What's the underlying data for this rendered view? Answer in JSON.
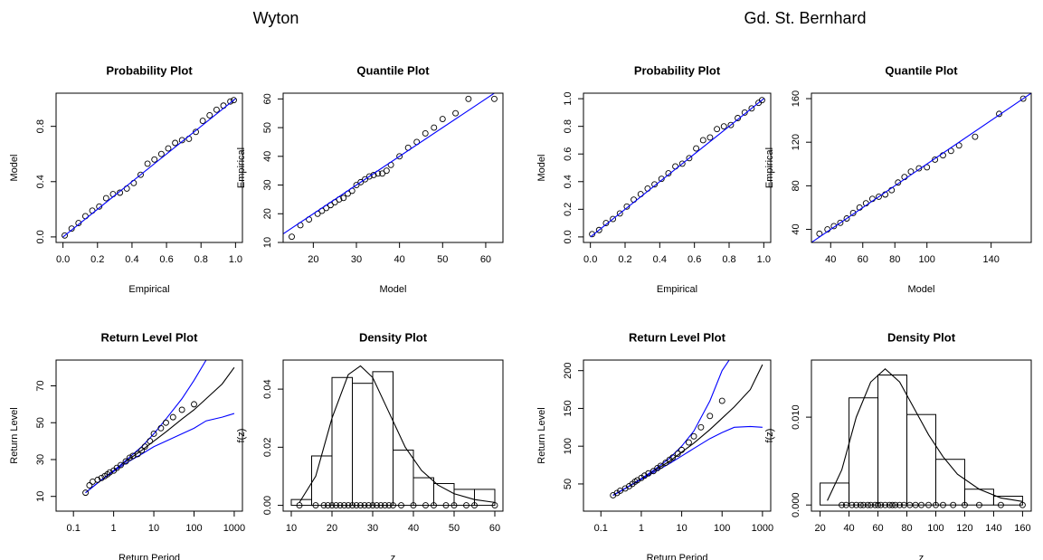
{
  "groups": [
    {
      "title": "Wyton"
    },
    {
      "title": "Gd. St. Bernhard"
    }
  ],
  "chart_data": [
    {
      "type": "scatter",
      "title": "Probability Plot",
      "xlabel": "Empirical",
      "ylabel": "Model",
      "xlim": [
        -0.04,
        1.04
      ],
      "ylim": [
        -0.04,
        1.04
      ],
      "xticks": [
        {
          "value": 0,
          "label": "0.0"
        },
        0.2,
        0.4,
        0.6,
        0.8,
        {
          "value": 1,
          "label": "1.0"
        }
      ],
      "yticks": [
        {
          "value": 0,
          "label": "0.0"
        },
        0.4,
        0.8
      ],
      "series": [
        {
          "type": "scatter",
          "color": "#000000",
          "x": [
            0.01,
            0.05,
            0.09,
            0.13,
            0.17,
            0.21,
            0.25,
            0.29,
            0.33,
            0.37,
            0.41,
            0.45,
            0.49,
            0.53,
            0.57,
            0.61,
            0.65,
            0.69,
            0.73,
            0.77,
            0.81,
            0.85,
            0.89,
            0.93,
            0.97,
            0.99
          ],
          "values": [
            0.01,
            0.06,
            0.1,
            0.15,
            0.19,
            0.22,
            0.28,
            0.31,
            0.32,
            0.35,
            0.39,
            0.45,
            0.53,
            0.56,
            0.6,
            0.64,
            0.68,
            0.7,
            0.71,
            0.76,
            0.84,
            0.88,
            0.92,
            0.95,
            0.98,
            0.99
          ]
        },
        {
          "type": "line",
          "color": "#0000ff",
          "x": [
            0,
            1
          ],
          "values": [
            0,
            1
          ]
        }
      ]
    },
    {
      "type": "scatter",
      "title": "Quantile Plot",
      "xlabel": "Model",
      "ylabel": "Empirical",
      "xlim": [
        13,
        64
      ],
      "ylim": [
        10,
        62
      ],
      "xticks": [
        20,
        30,
        40,
        50,
        60
      ],
      "yticks": [
        10,
        20,
        30,
        40,
        50,
        60
      ],
      "series": [
        {
          "type": "scatter",
          "color": "#000000",
          "x": [
            15,
            17,
            19,
            21,
            22,
            23,
            24,
            25,
            26,
            27,
            28,
            29,
            30,
            31,
            32,
            33,
            34,
            35,
            36,
            37,
            38,
            40,
            42,
            44,
            46,
            48,
            50,
            53,
            56,
            62
          ],
          "values": [
            12,
            16,
            18,
            20,
            21,
            22,
            23,
            24,
            25,
            25.5,
            27,
            28,
            30,
            31,
            32,
            33,
            33.5,
            34,
            34,
            35,
            37,
            40,
            43,
            45,
            48,
            50,
            53,
            55,
            60,
            60
          ]
        },
        {
          "type": "line",
          "color": "#0000ff",
          "x": [
            13,
            64
          ],
          "values": [
            13,
            64
          ]
        }
      ]
    },
    {
      "type": "scatter",
      "title": "Return Level Plot",
      "xlabel": "Return Period",
      "ylabel": "Return Level",
      "xlog": true,
      "xlim": [
        0.037,
        1600
      ],
      "ylim": [
        2,
        84
      ],
      "xticks": [
        0.1,
        1,
        10,
        100,
        1000
      ],
      "yticks": [
        10,
        30,
        50,
        70
      ],
      "series": [
        {
          "type": "line",
          "color": "#000000",
          "x": [
            0.2,
            0.5,
            1,
            2,
            5,
            10,
            20,
            50,
            100,
            200,
            500,
            1000
          ],
          "values": [
            12,
            19,
            24,
            29,
            35,
            40,
            45,
            52,
            57,
            63,
            71,
            80
          ]
        },
        {
          "type": "line",
          "color": "#0000ff",
          "x": [
            0.2,
            0.5,
            1,
            2,
            5,
            10,
            20,
            50,
            100,
            200
          ],
          "values": [
            12,
            19,
            24,
            29.5,
            37,
            44,
            52,
            63,
            73,
            84
          ]
        },
        {
          "type": "line",
          "color": "#0000ff",
          "x": [
            0.2,
            0.5,
            1,
            2,
            5,
            10,
            20,
            50,
            100,
            200,
            500,
            1000
          ],
          "values": [
            12,
            19,
            23.5,
            28,
            33,
            37,
            40,
            44,
            47,
            51,
            53,
            55
          ]
        },
        {
          "type": "scatter",
          "color": "#000000",
          "x": [
            0.2,
            0.25,
            0.3,
            0.4,
            0.5,
            0.6,
            0.7,
            0.8,
            1,
            1.2,
            1.5,
            2,
            2.5,
            3,
            4,
            5,
            6,
            8,
            10,
            15,
            20,
            30,
            50,
            100
          ],
          "values": [
            12,
            16,
            18,
            19,
            20,
            21,
            22,
            23,
            24,
            25.5,
            27,
            29,
            31,
            32,
            33,
            35,
            37,
            40,
            44,
            47,
            50,
            53,
            57,
            60
          ]
        }
      ]
    },
    {
      "type": "histogram",
      "title": "Density Plot",
      "xlabel": "z",
      "ylabel": "f(z)",
      "xlim": [
        8,
        62
      ],
      "ylim": [
        -0.002,
        0.05
      ],
      "xticks": [
        10,
        20,
        30,
        40,
        50,
        60
      ],
      "yticks": [
        {
          "value": 0,
          "label": "0.00"
        },
        0.02,
        0.04
      ],
      "bins": [
        10,
        15,
        20,
        25,
        30,
        35,
        40,
        45,
        50,
        55,
        60
      ],
      "counts": [
        0.002,
        0.017,
        0.044,
        0.042,
        0.046,
        0.019,
        0.0095,
        0.0075,
        0.0055,
        0.0055
      ],
      "series": [
        {
          "type": "line",
          "color": "#000000",
          "x": [
            12,
            16,
            20,
            24,
            27,
            30,
            34,
            38,
            42,
            46,
            50,
            55,
            60
          ],
          "values": [
            0.001,
            0.01,
            0.03,
            0.045,
            0.048,
            0.044,
            0.032,
            0.02,
            0.012,
            0.007,
            0.004,
            0.002,
            0.001
          ]
        },
        {
          "type": "scatter",
          "color": "#000000",
          "x": [
            12,
            16,
            18,
            19,
            20,
            21,
            22,
            23,
            24,
            25,
            26,
            27,
            28,
            29,
            30,
            31,
            32,
            33,
            34,
            35,
            37,
            40,
            43,
            45,
            48,
            50,
            53,
            55,
            60
          ],
          "values": [
            0,
            0,
            0,
            0,
            0,
            0,
            0,
            0,
            0,
            0,
            0,
            0,
            0,
            0,
            0,
            0,
            0,
            0,
            0,
            0,
            0,
            0,
            0,
            0,
            0,
            0,
            0,
            0,
            0
          ]
        }
      ]
    },
    {
      "type": "scatter",
      "title": "Probability Plot",
      "xlabel": "Empirical",
      "ylabel": "Model",
      "xlim": [
        -0.04,
        1.04
      ],
      "ylim": [
        -0.04,
        1.04
      ],
      "xticks": [
        {
          "value": 0,
          "label": "0.0"
        },
        0.2,
        0.4,
        0.6,
        0.8,
        {
          "value": 1,
          "label": "1.0"
        }
      ],
      "yticks": [
        {
          "value": 0,
          "label": "0.0"
        },
        0.2,
        0.4,
        0.6,
        0.8,
        {
          "value": 1,
          "label": "1.0"
        }
      ],
      "series": [
        {
          "type": "scatter",
          "color": "#000000",
          "x": [
            0.01,
            0.05,
            0.09,
            0.13,
            0.17,
            0.21,
            0.25,
            0.29,
            0.33,
            0.37,
            0.41,
            0.45,
            0.49,
            0.53,
            0.57,
            0.61,
            0.65,
            0.69,
            0.73,
            0.77,
            0.81,
            0.85,
            0.89,
            0.93,
            0.97,
            0.99
          ],
          "values": [
            0.02,
            0.05,
            0.1,
            0.13,
            0.17,
            0.22,
            0.27,
            0.31,
            0.35,
            0.38,
            0.42,
            0.46,
            0.51,
            0.53,
            0.57,
            0.64,
            0.7,
            0.72,
            0.78,
            0.8,
            0.81,
            0.86,
            0.9,
            0.93,
            0.97,
            0.99
          ]
        },
        {
          "type": "line",
          "color": "#0000ff",
          "x": [
            0,
            1
          ],
          "values": [
            0,
            1
          ]
        }
      ]
    },
    {
      "type": "scatter",
      "title": "Quantile Plot",
      "xlabel": "Model",
      "ylabel": "Empirical",
      "xlim": [
        28,
        165
      ],
      "ylim": [
        28,
        165
      ],
      "xticks": [
        40,
        60,
        80,
        100,
        140
      ],
      "yticks": [
        40,
        80,
        120,
        160
      ],
      "series": [
        {
          "type": "scatter",
          "color": "#000000",
          "x": [
            33,
            38,
            42,
            46,
            50,
            54,
            58,
            62,
            66,
            70,
            74,
            78,
            82,
            86,
            90,
            95,
            100,
            105,
            110,
            115,
            120,
            130,
            145,
            160
          ],
          "values": [
            36,
            40,
            43,
            46,
            50,
            55,
            60,
            64,
            68,
            70,
            72,
            76,
            83,
            88,
            93,
            96,
            97,
            104,
            108,
            112,
            117,
            125,
            146,
            160
          ]
        },
        {
          "type": "line",
          "color": "#0000ff",
          "x": [
            28,
            165
          ],
          "values": [
            28,
            165
          ]
        }
      ]
    },
    {
      "type": "scatter",
      "title": "Return Level Plot",
      "xlabel": "Return Period",
      "ylabel": "Return Level",
      "xlog": true,
      "xlim": [
        0.037,
        1600
      ],
      "ylim": [
        14,
        214
      ],
      "xticks": [
        0.1,
        1,
        10,
        100,
        1000
      ],
      "yticks": [
        50,
        100,
        150,
        200
      ],
      "series": [
        {
          "type": "line",
          "color": "#000000",
          "x": [
            0.2,
            0.5,
            1,
            2,
            5,
            10,
            20,
            50,
            100,
            200,
            500,
            1000
          ],
          "values": [
            35,
            47,
            57,
            67,
            80,
            92,
            104,
            122,
            137,
            152,
            175,
            208
          ]
        },
        {
          "type": "line",
          "color": "#0000ff",
          "x": [
            0.2,
            0.5,
            1,
            2,
            5,
            10,
            20,
            50,
            100,
            150
          ],
          "values": [
            35,
            47,
            57,
            68,
            84,
            100,
            120,
            160,
            200,
            214
          ]
        },
        {
          "type": "line",
          "color": "#0000ff",
          "x": [
            0.2,
            0.5,
            1,
            2,
            5,
            10,
            20,
            50,
            100,
            200,
            500,
            1000
          ],
          "values": [
            35,
            47,
            56,
            65,
            77,
            87,
            97,
            110,
            118,
            125,
            126,
            125
          ]
        },
        {
          "type": "scatter",
          "color": "#000000",
          "x": [
            0.2,
            0.25,
            0.3,
            0.4,
            0.5,
            0.6,
            0.7,
            0.8,
            1,
            1.2,
            1.5,
            2,
            2.5,
            3,
            4,
            5,
            6,
            8,
            10,
            15,
            20,
            30,
            50,
            100
          ],
          "values": [
            35,
            38,
            41,
            44,
            47,
            50,
            53,
            55,
            58,
            61,
            64,
            67,
            71,
            74,
            78,
            82,
            85,
            90,
            95,
            105,
            113,
            125,
            140,
            160
          ]
        }
      ]
    },
    {
      "type": "histogram",
      "title": "Density Plot",
      "xlabel": "z",
      "ylabel": "f(z)",
      "xlim": [
        14,
        166
      ],
      "ylim": [
        -0.0007,
        0.0165
      ],
      "xticks": [
        20,
        40,
        60,
        80,
        100,
        120,
        140,
        160
      ],
      "yticks": [
        {
          "value": 0,
          "label": "0.000"
        },
        {
          "value": 0.01,
          "label": "0.010"
        }
      ],
      "bins": [
        20,
        40,
        60,
        80,
        100,
        120,
        140,
        160
      ],
      "counts": [
        0.0025,
        0.0122,
        0.0148,
        0.0103,
        0.0052,
        0.0018,
        0.001
      ],
      "series": [
        {
          "type": "line",
          "color": "#000000",
          "x": [
            25,
            35,
            45,
            55,
            65,
            75,
            85,
            95,
            105,
            115,
            130,
            145,
            160
          ],
          "values": [
            0.0005,
            0.004,
            0.01,
            0.014,
            0.0155,
            0.014,
            0.011,
            0.008,
            0.0055,
            0.0035,
            0.0018,
            0.0008,
            0.0004
          ]
        },
        {
          "type": "scatter",
          "color": "#000000",
          "x": [
            35,
            38,
            42,
            45,
            48,
            50,
            53,
            55,
            58,
            60,
            62,
            65,
            68,
            70,
            72,
            75,
            78,
            82,
            86,
            90,
            95,
            100,
            105,
            112,
            120,
            130,
            145,
            160
          ],
          "values": [
            0,
            0,
            0,
            0,
            0,
            0,
            0,
            0,
            0,
            0,
            0,
            0,
            0,
            0,
            0,
            0,
            0,
            0,
            0,
            0,
            0,
            0,
            0,
            0,
            0,
            0,
            0,
            0
          ]
        }
      ]
    }
  ]
}
